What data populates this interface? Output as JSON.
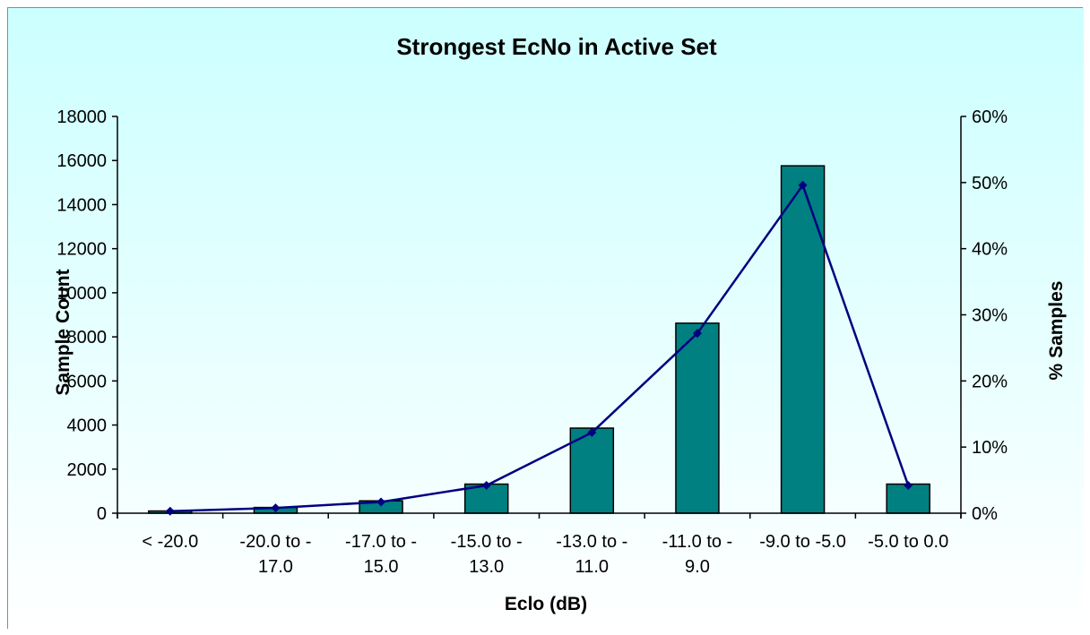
{
  "chart_data": {
    "type": "bar",
    "title": "Strongest EcNo in Active Set",
    "xlabel": "Eclo (dB)",
    "ylabel": "Sample Count",
    "y2label": "% Samples",
    "categories": [
      [
        "< -20.0"
      ],
      [
        "-20.0 to -",
        "17.0"
      ],
      [
        "-17.0 to -",
        "15.0"
      ],
      [
        "-15.0 to -",
        "13.0"
      ],
      [
        "-13.0 to -",
        "11.0"
      ],
      [
        "-11.0 to -",
        "9.0"
      ],
      [
        "-9.0 to -5.0"
      ],
      [
        "-5.0 to 0.0"
      ]
    ],
    "series": [
      {
        "axis": "left",
        "type": "bar",
        "values": [
          100,
          260,
          560,
          1320,
          3860,
          8620,
          15760,
          1320
        ]
      },
      {
        "axis": "right",
        "type": "line",
        "values": [
          0.3,
          0.8,
          1.7,
          4.2,
          12.2,
          27.2,
          49.6,
          4.2
        ]
      }
    ],
    "ylim": [
      0,
      18000
    ],
    "yticks": [
      "0",
      "2000",
      "4000",
      "6000",
      "8000",
      "10000",
      "12000",
      "14000",
      "16000",
      "18000"
    ],
    "y2lim": [
      0,
      60
    ],
    "y2ticks": [
      "0%",
      "10%",
      "20%",
      "30%",
      "40%",
      "50%",
      "60%"
    ],
    "legend": "none",
    "grid": false,
    "colors": {
      "background_top": "#ccffff",
      "background_bottom": "#ffffff",
      "bar": "#008080",
      "line": "#000080"
    }
  }
}
